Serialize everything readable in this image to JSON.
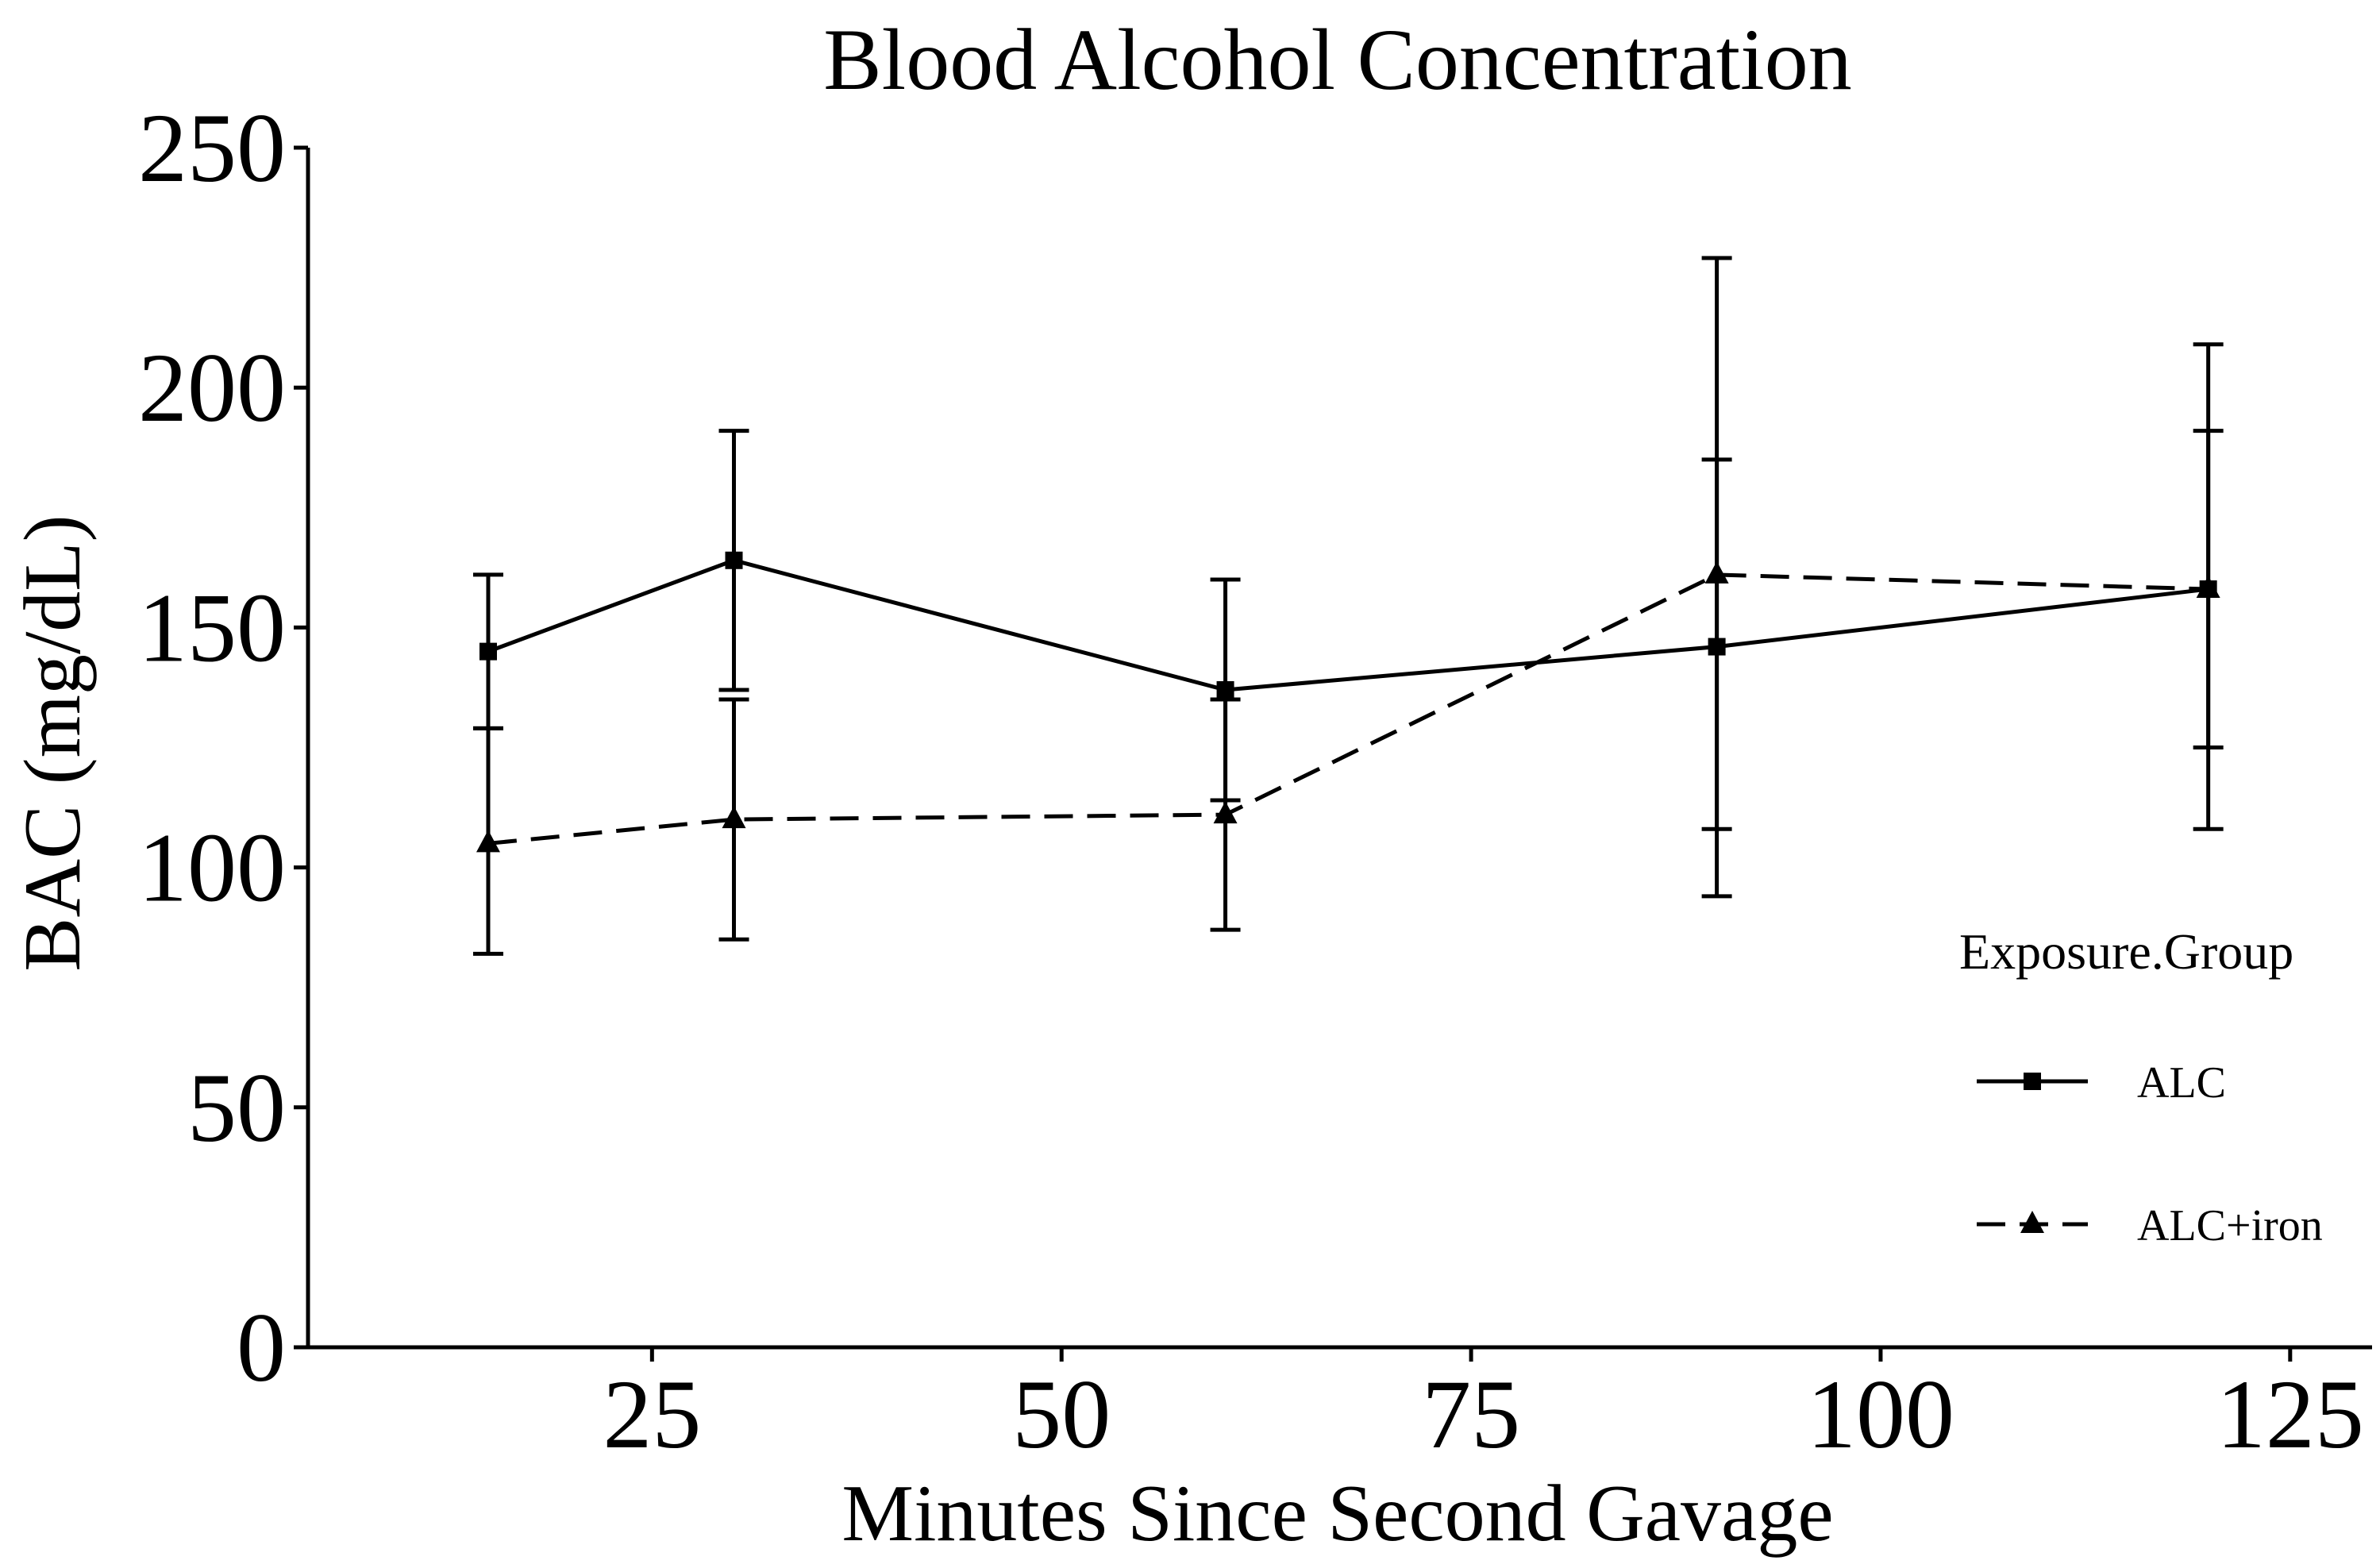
{
  "chart_data": {
    "type": "line",
    "title": "Blood Alcohol Concentration",
    "xlabel": "Minutes Since Second Gavage",
    "ylabel": "BAC (mg/dL)",
    "xlim": [
      4,
      130
    ],
    "ylim": [
      0,
      250
    ],
    "xticks": [
      25,
      50,
      75,
      100,
      125
    ],
    "yticks": [
      0,
      50,
      100,
      150,
      200,
      250
    ],
    "grid": false,
    "legend": {
      "title": "Exposure.Group",
      "position": "right"
    },
    "series": [
      {
        "name": "ALC",
        "marker": "square",
        "line": "solid",
        "x": [
          15,
          30,
          60,
          90,
          120
        ],
        "y": [
          145,
          164,
          137,
          146,
          158
        ],
        "err_low": [
          129,
          137,
          114,
          108,
          125
        ],
        "err_high": [
          161,
          191,
          160,
          185,
          191
        ]
      },
      {
        "name": "ALC+iron",
        "marker": "triangle",
        "line": "dashed",
        "x": [
          15,
          30,
          60,
          90,
          120
        ],
        "y": [
          105,
          110,
          111,
          161,
          158
        ],
        "err_low": [
          82,
          85,
          87,
          94,
          108
        ],
        "err_high": [
          129,
          135,
          135,
          227,
          209
        ]
      }
    ]
  }
}
